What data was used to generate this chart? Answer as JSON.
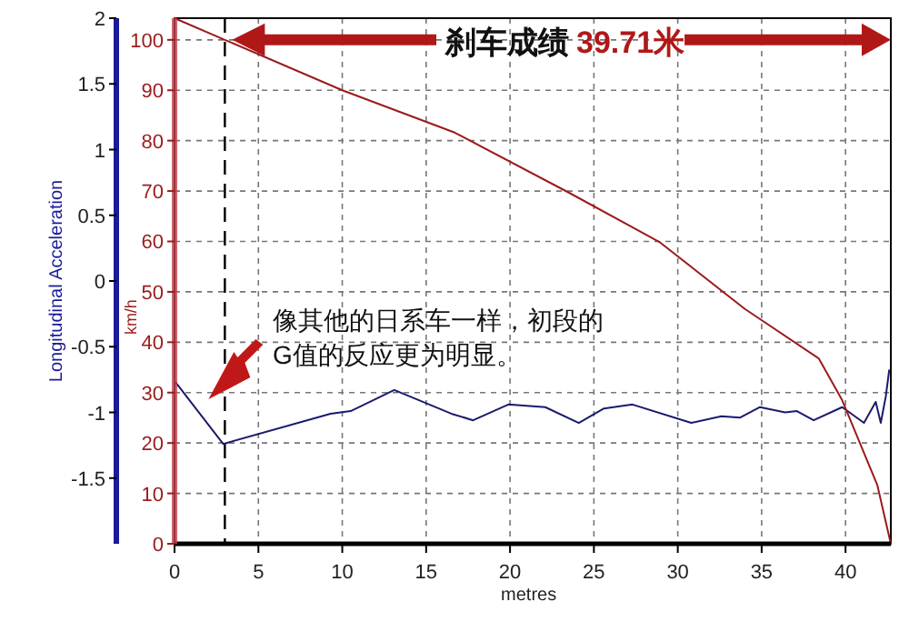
{
  "chart_data": {
    "type": "line",
    "xlabel": "metres",
    "ylabel": "Longitudinal Acceleration",
    "y2label": "km/h",
    "xlim": [
      0,
      42.7
    ],
    "xticks": [
      0,
      5,
      10,
      15,
      20,
      25,
      30,
      35,
      40
    ],
    "ylim": [
      -2,
      2
    ],
    "yticks": [
      -1.5,
      -1,
      -0.5,
      0,
      0.5,
      1,
      1.5,
      2
    ],
    "y2lim": [
      0,
      104.3
    ],
    "y2ticks": [
      0,
      10,
      20,
      30,
      40,
      50,
      60,
      70,
      80,
      90,
      100
    ],
    "grid": true,
    "line_style": "solid",
    "marker": "none",
    "series": [
      {
        "color": "#1a1a6e",
        "axis": "y",
        "x": [
          0,
          2.9,
          9.3,
          10.5,
          13.1,
          16.5,
          17.8,
          19.9,
          22.1,
          24.1,
          25.6,
          27.3,
          30.8,
          32.6,
          33.7,
          34.9,
          36.4,
          37.1,
          38.1,
          39.8,
          41.1,
          41.8,
          42.1,
          42.4,
          42.6
        ],
        "values": [
          -0.76,
          -1.24,
          -1.01,
          -0.99,
          -0.83,
          -1.01,
          -1.06,
          -0.94,
          -0.96,
          -1.08,
          -0.97,
          -0.94,
          -1.08,
          -1.03,
          -1.04,
          -0.96,
          -1.0,
          -0.99,
          -1.06,
          -0.96,
          -1.08,
          -0.92,
          -1.08,
          -0.88,
          -0.68
        ]
      },
      {
        "color": "#9b1b1b",
        "axis": "y2",
        "x": [
          0,
          3,
          10,
          16.7,
          23.5,
          28.9,
          34,
          38.4,
          39.8,
          41.9,
          42.7
        ],
        "values": [
          104.3,
          100,
          90,
          81.6,
          69.7,
          59.9,
          46.6,
          36.8,
          28.5,
          11.6,
          0
        ]
      }
    ],
    "ref_lines": [
      {
        "axis": "x",
        "value": 3,
        "color": "#000000",
        "line_style": "dashed"
      }
    ],
    "annotations": [
      "刹车成绩",
      "39.71米",
      "像其他的日系车一样，初段的G值的反应更为明显。"
    ]
  }
}
